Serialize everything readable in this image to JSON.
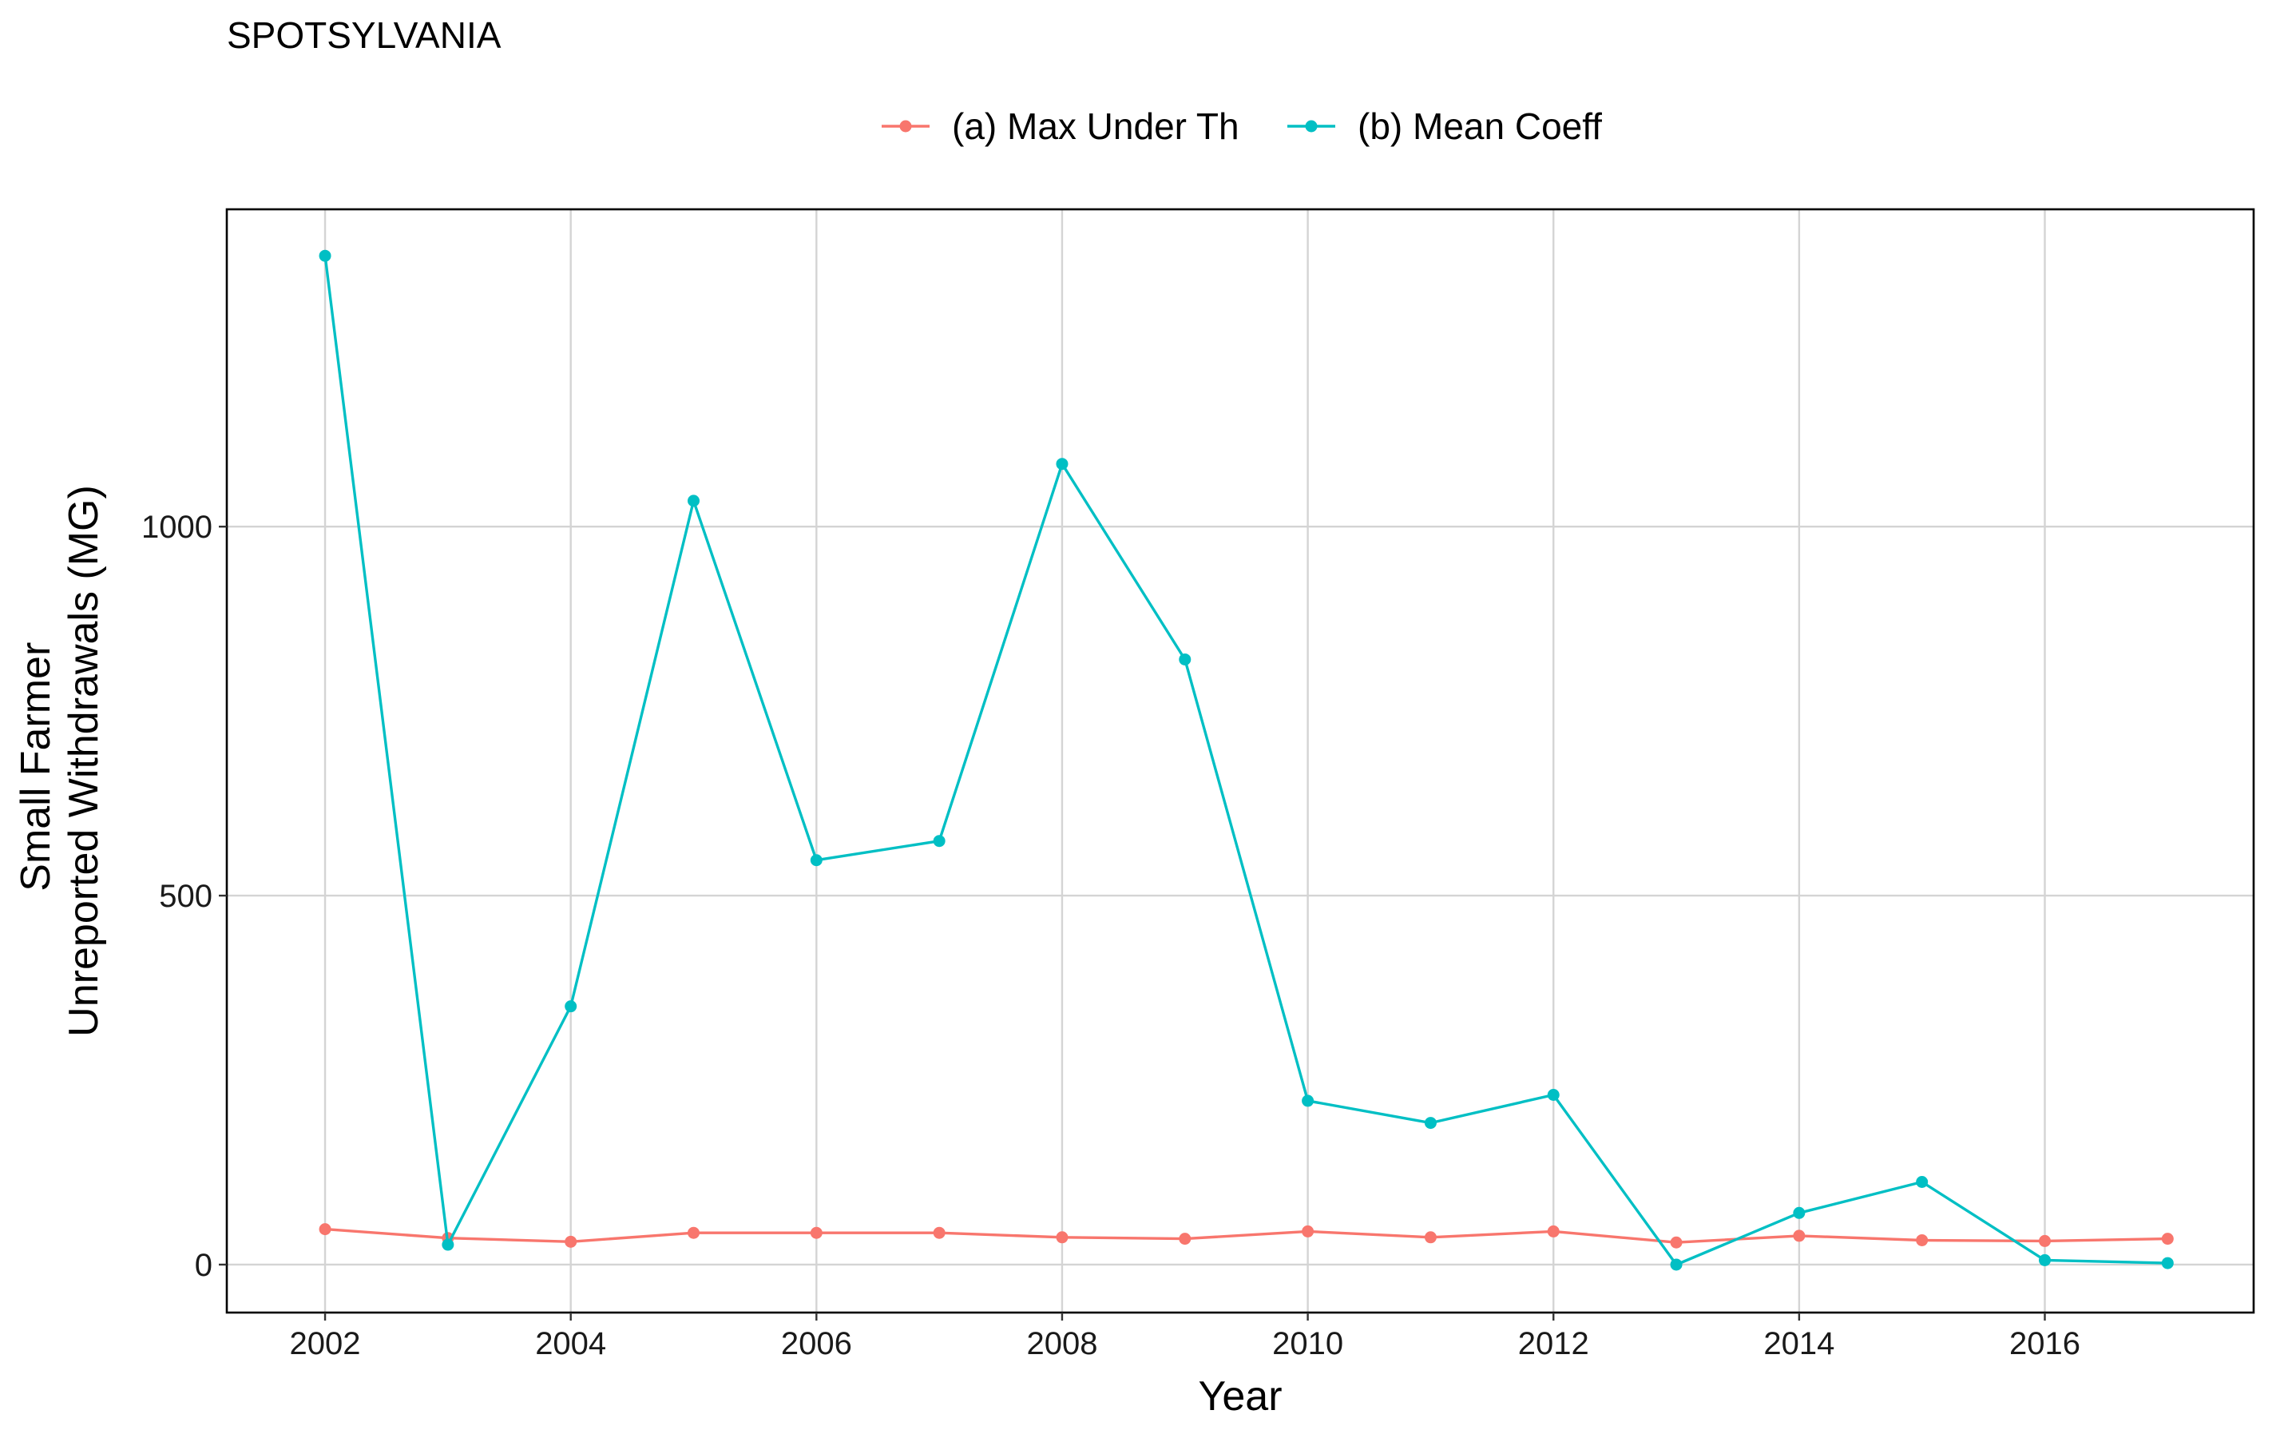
{
  "chart_data": {
    "type": "line",
    "title": "SPOTSYLVANIA",
    "xlabel": "Year",
    "ylabel": [
      "Small Farmer",
      "Unreported Withdrawals (MG)"
    ],
    "x": [
      2002,
      2003,
      2004,
      2005,
      2006,
      2007,
      2008,
      2009,
      2010,
      2011,
      2012,
      2013,
      2014,
      2015,
      2016,
      2017
    ],
    "xlim": [
      2001.2,
      2017.7
    ],
    "ylim": [
      -65,
      1430
    ],
    "xticks": [
      2002,
      2004,
      2006,
      2008,
      2010,
      2012,
      2014,
      2016
    ],
    "xtick_labels": [
      "2002",
      "2004",
      "2006",
      "2008",
      "2010",
      "2012",
      "2014",
      "2016"
    ],
    "yticks": [
      0,
      500,
      1000
    ],
    "ytick_labels": [
      "0",
      "500",
      "1000"
    ],
    "grid": true,
    "legend_position": "top",
    "series": [
      {
        "name": "(a) Max Under Th",
        "color": "#F8766D",
        "values": [
          48,
          36,
          31,
          43,
          43,
          43,
          37,
          35,
          45,
          37,
          45,
          30,
          39,
          33,
          32,
          35
        ]
      },
      {
        "name": "(b) Mean Coeff",
        "color": "#00BFC4",
        "values": [
          1367,
          27,
          350,
          1035,
          548,
          574,
          1085,
          820,
          222,
          192,
          230,
          0,
          70,
          112,
          6,
          2
        ]
      }
    ]
  }
}
